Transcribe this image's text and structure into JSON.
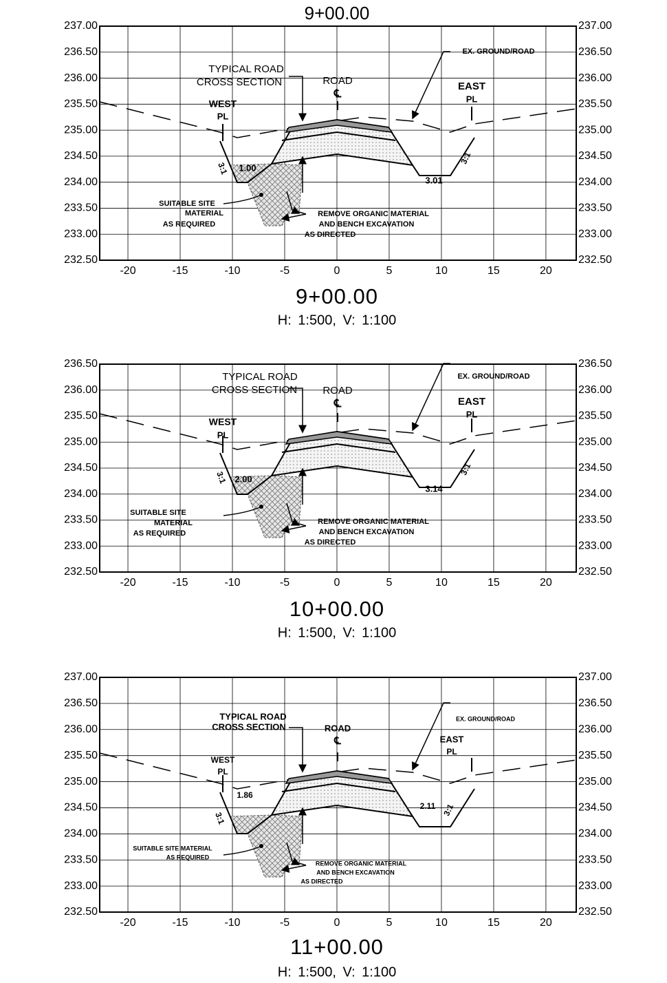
{
  "header": {
    "title": "9+00.00"
  },
  "sections": [
    {
      "xlim": [
        -22.7,
        22.9
      ],
      "ylim": [
        232.5,
        237
      ],
      "yticks": [
        {
          "value": 232.5,
          "label": "232.50"
        },
        {
          "value": 233,
          "label": "233.00"
        },
        {
          "value": 233.5,
          "label": "233.50"
        },
        {
          "value": 234,
          "label": "234.00"
        },
        {
          "value": 234.5,
          "label": "234.50"
        },
        {
          "value": 235,
          "label": "235.00"
        },
        {
          "value": 235.5,
          "label": "235.50"
        },
        {
          "value": 236,
          "label": "236.00"
        },
        {
          "value": 236.5,
          "label": "236.50"
        },
        {
          "value": 237,
          "label": "237.00"
        }
      ],
      "xticks": [
        -20,
        -15,
        -10,
        -5,
        0,
        5,
        10,
        15,
        20
      ],
      "annotations": [
        "TYPICAL ROAD",
        "CROSS SECTION",
        "ROAD",
        "℄",
        "WEST",
        "PL",
        "EAST",
        "PL",
        "EX. GROUND/ROAD",
        "1.00",
        "3:1",
        "3.01",
        "3:1",
        "SUITABLE SITE",
        "MATERIAL",
        "AS REQUIRED",
        "REMOVE ORGANIC MATERIAL",
        "AND BENCH EXCAVATION",
        "AS DIRECTED"
      ],
      "station": "9+00.00",
      "scale": "H: 1:500, V: 1:100"
    },
    {
      "xlim": [
        -22.7,
        22.9
      ],
      "ylim": [
        232.5,
        236.5
      ],
      "yticks": [
        {
          "value": 232.5,
          "label": "232.50"
        },
        {
          "value": 233,
          "label": "233.00"
        },
        {
          "value": 233.5,
          "label": "233.50"
        },
        {
          "value": 234,
          "label": "234.00"
        },
        {
          "value": 234.5,
          "label": "234.50"
        },
        {
          "value": 235,
          "label": "235.00"
        },
        {
          "value": 235.5,
          "label": "235.50"
        },
        {
          "value": 236,
          "label": "236.00"
        },
        {
          "value": 236.5,
          "label": "236.50"
        }
      ],
      "xticks": [
        -20,
        -15,
        -10,
        -5,
        0,
        5,
        10,
        15,
        20
      ],
      "annotations": [
        "TYPICAL ROAD",
        "CROSS SECTION",
        "ROAD",
        "℄",
        "WEST",
        "PL",
        "EAST",
        "PL",
        "EX. GROUND/ROAD",
        "2.00",
        "3:1",
        "3.14",
        "3:1",
        "SUITABLE SITE",
        "MATERIAL",
        "AS REQUIRED",
        "REMOVE ORGANIC MATERIAL",
        "AND BENCH EXCAVATION",
        "AS DIRECTED"
      ],
      "station": "10+00.00",
      "scale": "H: 1:500, V: 1:100"
    },
    {
      "xlim": [
        -22.7,
        22.9
      ],
      "ylim": [
        232.5,
        237
      ],
      "yticks": [
        {
          "value": 232.5,
          "label": "232.50"
        },
        {
          "value": 233,
          "label": "233.00"
        },
        {
          "value": 233.5,
          "label": "233.50"
        },
        {
          "value": 234,
          "label": "234.00"
        },
        {
          "value": 234.5,
          "label": "234.50"
        },
        {
          "value": 235,
          "label": "235.00"
        },
        {
          "value": 235.5,
          "label": "235.50"
        },
        {
          "value": 236,
          "label": "236.00"
        },
        {
          "value": 236.5,
          "label": "236.50"
        },
        {
          "value": 237,
          "label": "237.00"
        }
      ],
      "xticks": [
        -20,
        -15,
        -10,
        -5,
        0,
        5,
        10,
        15,
        20
      ],
      "annotations": [
        "TYPICAL ROAD",
        "CROSS SECTION",
        "ROAD",
        "℄",
        "WEST",
        "PL",
        "EAST",
        "PL",
        "EX. GROUND/ROAD",
        "1.86",
        "3:1",
        "2.11",
        "3:1",
        "SUITABLE SITE MATERIAL",
        "AS REQUIRED",
        "REMOVE ORGANIC MATERIAL",
        "AND BENCH EXCAVATION",
        "AS DIRECTED"
      ],
      "station": "11+00.00",
      "scale": "H: 1:500, V: 1:100"
    }
  ]
}
